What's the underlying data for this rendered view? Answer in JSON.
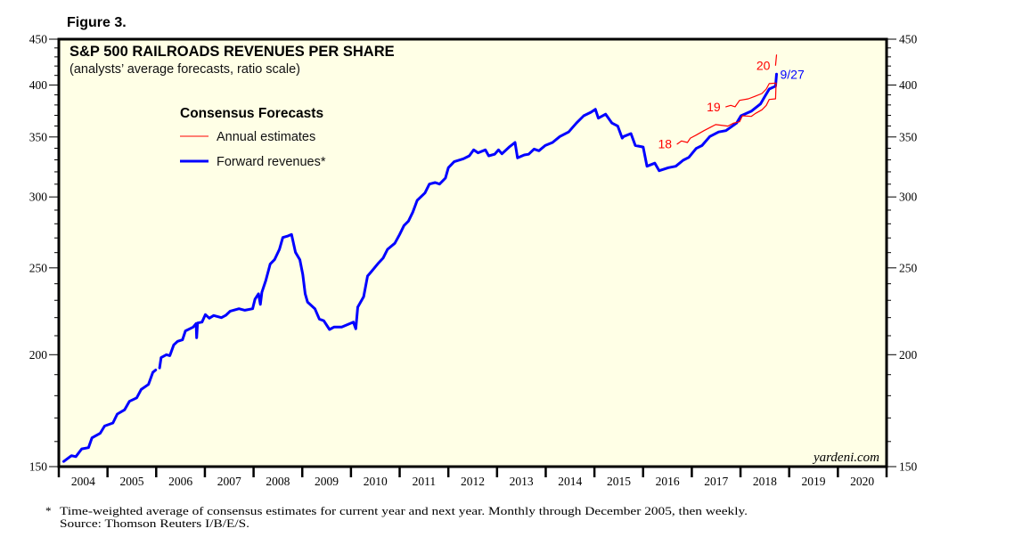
{
  "figure_label": "Figure 3.",
  "chart_data": {
    "type": "line",
    "title": "S&P 500 RAILROADS REVENUES PER SHARE",
    "subtitle": "(analysts’ average forecasts, ratio scale)",
    "xlabel": "",
    "ylabel": "",
    "y_scale": "log",
    "ylim": [
      150,
      450
    ],
    "xlim": [
      2004,
      2021
    ],
    "y_ticks": [
      150,
      200,
      250,
      300,
      350,
      400,
      450
    ],
    "y_minor_step": 10,
    "x_tick_labels": [
      "2004",
      "2005",
      "2006",
      "2007",
      "2008",
      "2009",
      "2010",
      "2011",
      "2012",
      "2013",
      "2014",
      "2015",
      "2016",
      "2017",
      "2018",
      "2019",
      "2020"
    ],
    "grid": false,
    "background_color": "#FFFFE6",
    "legend": {
      "title": "Consensus Forecasts",
      "placement": "upper-left",
      "entries": [
        {
          "label": "Annual estimates",
          "color": "#FF0000",
          "style": "thin"
        },
        {
          "label": "Forward revenues*",
          "color": "#0000FF",
          "style": "thick"
        }
      ]
    },
    "series": [
      {
        "name": "Forward revenues*",
        "color": "#0000FF",
        "end_label": "9/27",
        "segments": [
          [
            [
              2004.1,
              152.0
            ],
            [
              2004.26,
              154.3
            ],
            [
              2004.35,
              153.9
            ],
            [
              2004.47,
              157.0
            ],
            [
              2004.61,
              157.5
            ],
            [
              2004.68,
              161.5
            ],
            [
              2004.85,
              163.4
            ],
            [
              2004.94,
              166.5
            ],
            [
              2005.11,
              167.8
            ],
            [
              2005.2,
              171.7
            ],
            [
              2005.35,
              173.6
            ],
            [
              2005.45,
              177.4
            ],
            [
              2005.6,
              179.0
            ],
            [
              2005.69,
              182.9
            ],
            [
              2005.84,
              185.3
            ],
            [
              2005.93,
              191.1
            ],
            [
              2005.99,
              192.3
            ]
          ],
          [
            [
              2006.07,
              193.3
            ],
            [
              2006.1,
              198.5
            ],
            [
              2006.21,
              200.0
            ],
            [
              2006.28,
              199.5
            ],
            [
              2006.36,
              205.1
            ],
            [
              2006.44,
              207.0
            ],
            [
              2006.54,
              207.8
            ],
            [
              2006.6,
              212.6
            ],
            [
              2006.76,
              214.7
            ],
            [
              2006.82,
              216.7
            ],
            [
              2006.83,
              208.9
            ],
            [
              2006.85,
              217.0
            ],
            [
              2006.94,
              217.5
            ],
            [
              2007.01,
              221.7
            ],
            [
              2007.09,
              219.7
            ],
            [
              2007.18,
              221.2
            ],
            [
              2007.34,
              220.0
            ],
            [
              2007.43,
              221.3
            ],
            [
              2007.52,
              223.7
            ],
            [
              2007.7,
              225.1
            ],
            [
              2007.82,
              224.2
            ],
            [
              2007.98,
              225.1
            ],
            [
              2008.03,
              230.7
            ],
            [
              2008.1,
              233.9
            ],
            [
              2008.14,
              227.6
            ],
            [
              2008.17,
              234.8
            ],
            [
              2008.25,
              242.0
            ],
            [
              2008.34,
              252.4
            ],
            [
              2008.43,
              255.3
            ],
            [
              2008.53,
              262.2
            ],
            [
              2008.6,
              270.3
            ],
            [
              2008.71,
              271.4
            ],
            [
              2008.78,
              272.4
            ],
            [
              2008.86,
              260.2
            ],
            [
              2008.95,
              255.3
            ],
            [
              2009.01,
              245.8
            ],
            [
              2009.06,
              233.9
            ],
            [
              2009.11,
              228.9
            ],
            [
              2009.26,
              225.1
            ],
            [
              2009.35,
              219.2
            ],
            [
              2009.44,
              218.3
            ],
            [
              2009.56,
              213.4
            ],
            [
              2009.65,
              214.7
            ],
            [
              2009.81,
              214.7
            ],
            [
              2010.05,
              217.5
            ],
            [
              2010.1,
              213.8
            ],
            [
              2010.14,
              226.0
            ],
            [
              2010.26,
              232.1
            ],
            [
              2010.34,
              244.8
            ],
            [
              2010.42,
              247.6
            ],
            [
              2010.57,
              253.3
            ],
            [
              2010.66,
              256.3
            ],
            [
              2010.75,
              262.2
            ],
            [
              2010.9,
              266.3
            ],
            [
              2011.0,
              272.4
            ],
            [
              2011.09,
              278.7
            ],
            [
              2011.18,
              281.9
            ],
            [
              2011.27,
              288.5
            ],
            [
              2011.36,
              297.4
            ],
            [
              2011.52,
              303.1
            ],
            [
              2011.61,
              310.1
            ],
            [
              2011.73,
              311.3
            ],
            [
              2011.82,
              310.1
            ],
            [
              2011.94,
              314.9
            ],
            [
              2012.0,
              323.4
            ],
            [
              2012.12,
              328.4
            ],
            [
              2012.31,
              330.9
            ],
            [
              2012.43,
              333.4
            ],
            [
              2012.52,
              338.6
            ],
            [
              2012.61,
              336.0
            ],
            [
              2012.76,
              338.6
            ],
            [
              2012.83,
              333.4
            ],
            [
              2012.95,
              334.8
            ],
            [
              2013.03,
              338.6
            ],
            [
              2013.1,
              335.2
            ],
            [
              2013.25,
              341.1
            ],
            [
              2013.37,
              345.1
            ],
            [
              2013.42,
              331.7
            ],
            [
              2013.56,
              334.2
            ],
            [
              2013.65,
              334.8
            ],
            [
              2013.76,
              339.3
            ],
            [
              2013.86,
              337.8
            ],
            [
              2013.99,
              342.4
            ],
            [
              2014.14,
              345.1
            ],
            [
              2014.29,
              350.4
            ],
            [
              2014.47,
              354.5
            ],
            [
              2014.63,
              362.7
            ],
            [
              2014.78,
              369.6
            ],
            [
              2014.93,
              373.0
            ],
            [
              2015.02,
              375.8
            ],
            [
              2015.08,
              367.3
            ],
            [
              2015.23,
              371.1
            ],
            [
              2015.36,
              362.7
            ],
            [
              2015.48,
              359.9
            ],
            [
              2015.57,
              349.0
            ],
            [
              2015.6,
              350.4
            ],
            [
              2015.75,
              353.1
            ],
            [
              2015.84,
              342.4
            ],
            [
              2016.0,
              341.1
            ],
            [
              2016.08,
              324.6
            ],
            [
              2016.24,
              327.2
            ],
            [
              2016.33,
              320.9
            ],
            [
              2016.52,
              323.4
            ],
            [
              2016.67,
              324.6
            ],
            [
              2016.82,
              329.6
            ],
            [
              2016.94,
              332.1
            ],
            [
              2017.09,
              339.8
            ],
            [
              2017.21,
              342.4
            ],
            [
              2017.37,
              350.4
            ],
            [
              2017.55,
              354.5
            ],
            [
              2017.7,
              355.7
            ],
            [
              2017.92,
              362.7
            ],
            [
              2018.01,
              369.6
            ],
            [
              2018.22,
              373.9
            ],
            [
              2018.41,
              381.0
            ],
            [
              2018.5,
              388.4
            ],
            [
              2018.59,
              395.9
            ],
            [
              2018.72,
              398.9
            ],
            [
              2018.74,
              411.3
            ]
          ]
        ]
      },
      {
        "name": "Annual estimate 2018",
        "color": "#FF0000",
        "start_label": "18",
        "segments": [
          [
            [
              2016.7,
              343.7
            ],
            [
              2016.79,
              346.4
            ],
            [
              2016.91,
              345.1
            ],
            [
              2016.97,
              349.0
            ],
            [
              2017.09,
              351.7
            ],
            [
              2017.25,
              355.7
            ],
            [
              2017.37,
              358.5
            ],
            [
              2017.49,
              361.3
            ],
            [
              2017.74,
              359.9
            ],
            [
              2017.86,
              362.7
            ],
            [
              2017.98,
              364.0
            ],
            [
              2018.04,
              369.6
            ],
            [
              2018.22,
              369.0
            ],
            [
              2018.31,
              371.9
            ],
            [
              2018.44,
              375.3
            ],
            [
              2018.53,
              379.6
            ],
            [
              2018.59,
              385.4
            ],
            [
              2018.72,
              386.0
            ],
            [
              2018.73,
              402.0
            ]
          ]
        ]
      },
      {
        "name": "Annual estimate 2019",
        "color": "#FF0000",
        "start_label": "19",
        "segments": [
          [
            [
              2017.7,
              378.2
            ],
            [
              2017.8,
              379.6
            ],
            [
              2017.89,
              378.2
            ],
            [
              2017.98,
              384.5
            ],
            [
              2018.16,
              386.0
            ],
            [
              2018.29,
              388.4
            ],
            [
              2018.44,
              391.4
            ],
            [
              2018.53,
              395.9
            ],
            [
              2018.59,
              401.4
            ],
            [
              2018.72,
              402.0
            ]
          ]
        ]
      },
      {
        "name": "Annual estimate 2020",
        "color": "#FF0000",
        "start_label": "20",
        "segments": [
          [
            [
              2018.72,
              420.8
            ],
            [
              2018.74,
              432.1
            ]
          ]
        ]
      }
    ],
    "watermark": "yardeni.com"
  },
  "footnote": {
    "marker": "*",
    "line1": "Time-weighted average of consensus estimates for current year and next year. Monthly through December 2005, then weekly.",
    "line2": "Source: Thomson Reuters I/B/E/S."
  }
}
